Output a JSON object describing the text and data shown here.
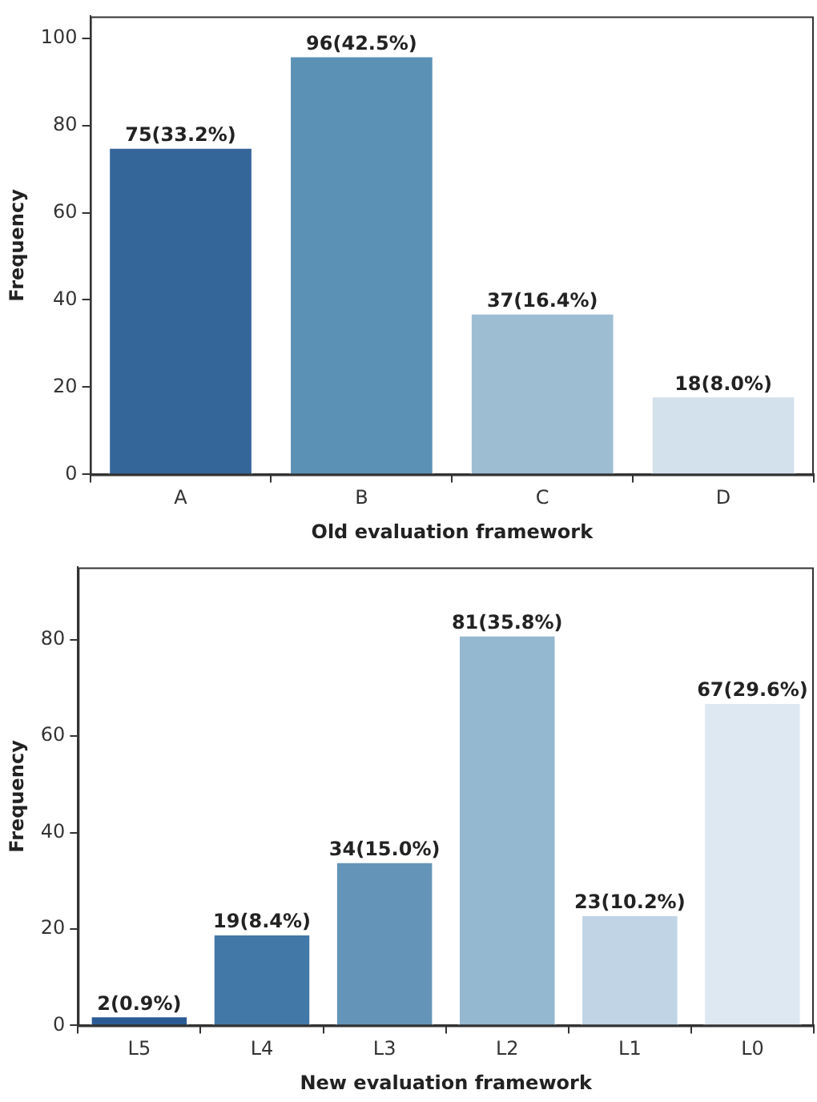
{
  "chart_data": [
    {
      "type": "bar",
      "xlabel": "Old evaluation framework",
      "ylabel": "Frequency",
      "categories": [
        "A",
        "B",
        "C",
        "D"
      ],
      "values": [
        75,
        96,
        37,
        18
      ],
      "colors": [
        "#35669a",
        "#5c91b6",
        "#9dbdd3",
        "#d3e1ed"
      ],
      "value_labels": [
        "75(33.2%)",
        "96(42.5%)",
        "37(16.4%)",
        "18(8.0%)"
      ],
      "ylim": [
        0,
        105
      ],
      "yticks": [
        0,
        20,
        40,
        60,
        80,
        100
      ],
      "grid": false,
      "legend": false
    },
    {
      "type": "bar",
      "xlabel": "New evaluation framework",
      "ylabel": "Frequency",
      "categories": [
        "L5",
        "L4",
        "L3",
        "L2",
        "L1",
        "L0"
      ],
      "values": [
        2,
        19,
        34,
        81,
        23,
        67
      ],
      "colors": [
        "#2b5b94",
        "#4178a8",
        "#6495b8",
        "#94b8cf",
        "#c0d4e5",
        "#dee8f2"
      ],
      "value_labels": [
        "2(0.9%)",
        "19(8.4%)",
        "34(15.0%)",
        "81(35.8%)",
        "23(10.2%)",
        "67(29.6%)"
      ],
      "ylim": [
        0,
        95
      ],
      "yticks": [
        0,
        20,
        40,
        60,
        80
      ],
      "grid": false,
      "legend": false
    }
  ]
}
